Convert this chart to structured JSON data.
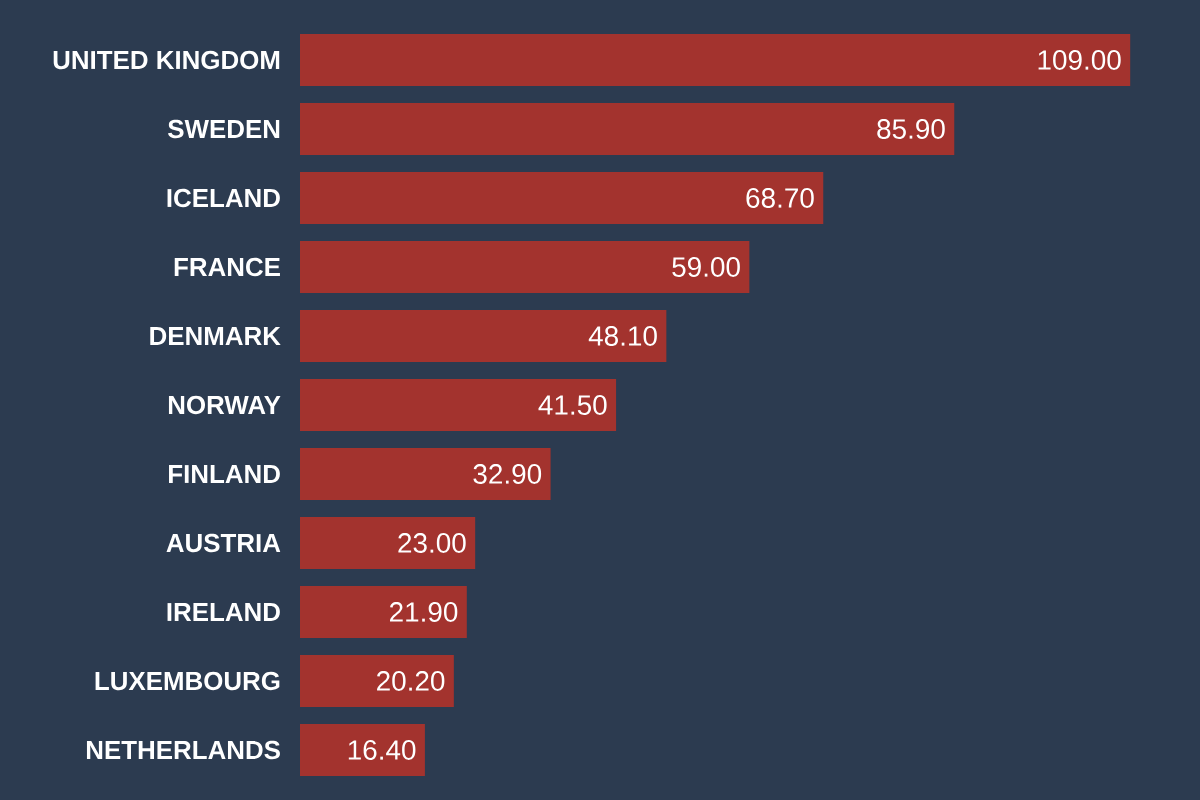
{
  "chart_data": {
    "type": "bar",
    "orientation": "horizontal",
    "categories": [
      "UNITED KINGDOM",
      "SWEDEN",
      "ICELAND",
      "FRANCE",
      "DENMARK",
      "NORWAY",
      "FINLAND",
      "AUSTRIA",
      "IRELAND",
      "LUXEMBOURG",
      "NETHERLANDS"
    ],
    "values": [
      109.0,
      85.9,
      68.7,
      59.0,
      48.1,
      41.5,
      32.9,
      23.0,
      21.9,
      20.2,
      16.4
    ],
    "value_labels": [
      "109.00",
      "85.90",
      "68.70",
      "59.00",
      "48.10",
      "41.50",
      "32.90",
      "23.00",
      "21.90",
      "20.20",
      "16.40"
    ],
    "color": "#a3332e"
  }
}
